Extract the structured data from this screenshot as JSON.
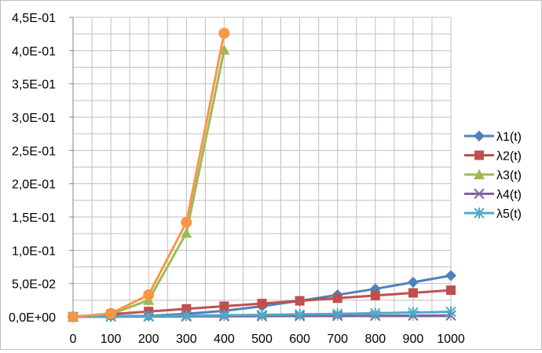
{
  "chart_data": {
    "type": "line",
    "x_ticks": [
      "0",
      "100",
      "200",
      "300",
      "400",
      "500",
      "600",
      "700",
      "800",
      "900",
      "1000"
    ],
    "y_ticks": [
      "0,0E+00",
      "5,0E-02",
      "1,0E-01",
      "1,5E-01",
      "2,0E-01",
      "2,5E-01",
      "3,0E-01",
      "3,5E-01",
      "4,0E-01",
      "4,5E-01"
    ],
    "ylim": [
      0,
      0.45
    ],
    "xlim": [
      0,
      1000
    ],
    "grid": true,
    "legend_position": "right",
    "series": [
      {
        "name": "λ1(t)",
        "color": "#4f81bd",
        "marker": "diamond",
        "x": [
          0,
          100,
          200,
          300,
          400,
          500,
          600,
          700,
          800,
          900,
          1000
        ],
        "values": [
          0,
          0.0012,
          0.0015,
          0.0045,
          0.009,
          0.016,
          0.024,
          0.033,
          0.042,
          0.052,
          0.062
        ]
      },
      {
        "name": "λ2(t)",
        "color": "#c0504d",
        "marker": "square",
        "x": [
          0,
          100,
          200,
          300,
          400,
          500,
          600,
          700,
          800,
          900,
          1000
        ],
        "values": [
          0,
          0.004,
          0.008,
          0.012,
          0.016,
          0.02,
          0.024,
          0.028,
          0.032,
          0.036,
          0.04
        ]
      },
      {
        "name": "λ3(t)",
        "color": "#9bbb59",
        "marker": "triangle",
        "x": [
          0,
          100,
          200,
          300,
          400
        ],
        "values": [
          0,
          0.004,
          0.025,
          0.126,
          0.401
        ]
      },
      {
        "name": "λ4(t)",
        "color": "#8064a2",
        "marker": "x",
        "x": [
          0,
          100,
          200,
          300,
          400,
          500,
          600,
          700,
          800,
          900,
          1000
        ],
        "values": [
          0,
          0.0002,
          0.0004,
          0.0006,
          0.0008,
          0.001,
          0.0012,
          0.0014,
          0.0016,
          0.0018,
          0.002
        ]
      },
      {
        "name": "λ5(t)",
        "color": "#4bacc6",
        "marker": "star",
        "x": [
          0,
          100,
          200,
          300,
          400,
          500,
          600,
          700,
          800,
          900,
          1000
        ],
        "values": [
          0,
          0.0006,
          0.0012,
          0.0018,
          0.0024,
          0.003,
          0.0038,
          0.0045,
          0.0055,
          0.0065,
          0.0075
        ]
      },
      {
        "name": "",
        "color": "#f79646",
        "marker": "circle",
        "x": [
          0,
          100,
          200,
          300,
          400
        ],
        "values": [
          0,
          0.005,
          0.033,
          0.142,
          0.426
        ]
      }
    ]
  }
}
